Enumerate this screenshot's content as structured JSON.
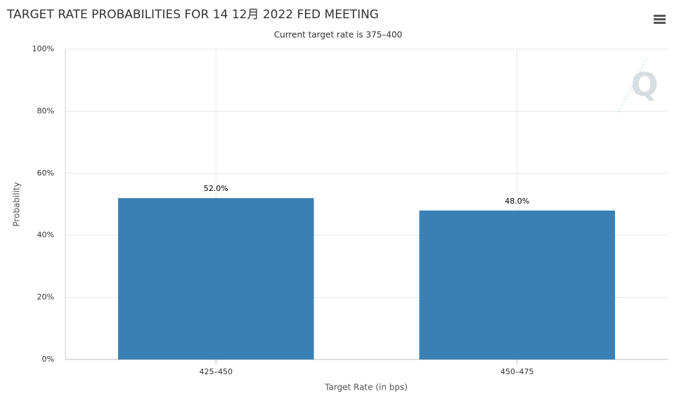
{
  "chart_data": {
    "type": "bar",
    "title": "TARGET RATE PROBABILITIES FOR 14 12月 2022 FED MEETING",
    "subtitle": "Current target rate is 375–400",
    "x_label": "Target Rate (in bps)",
    "y_label": "Probability",
    "categories": [
      "425–450",
      "450–475"
    ],
    "values": [
      52.0,
      48.0
    ],
    "value_labels": [
      "52.0%",
      "48.0%"
    ],
    "color": "#3a80b5",
    "ylim": [
      0,
      100
    ],
    "yticks": [
      {
        "value": 0,
        "label": "0%"
      },
      {
        "value": 20,
        "label": "20%"
      },
      {
        "value": 40,
        "label": "40%"
      },
      {
        "value": 60,
        "label": "60%"
      },
      {
        "value": 80,
        "label": "80%"
      },
      {
        "value": 100,
        "label": "100%"
      }
    ],
    "grid": true
  }
}
